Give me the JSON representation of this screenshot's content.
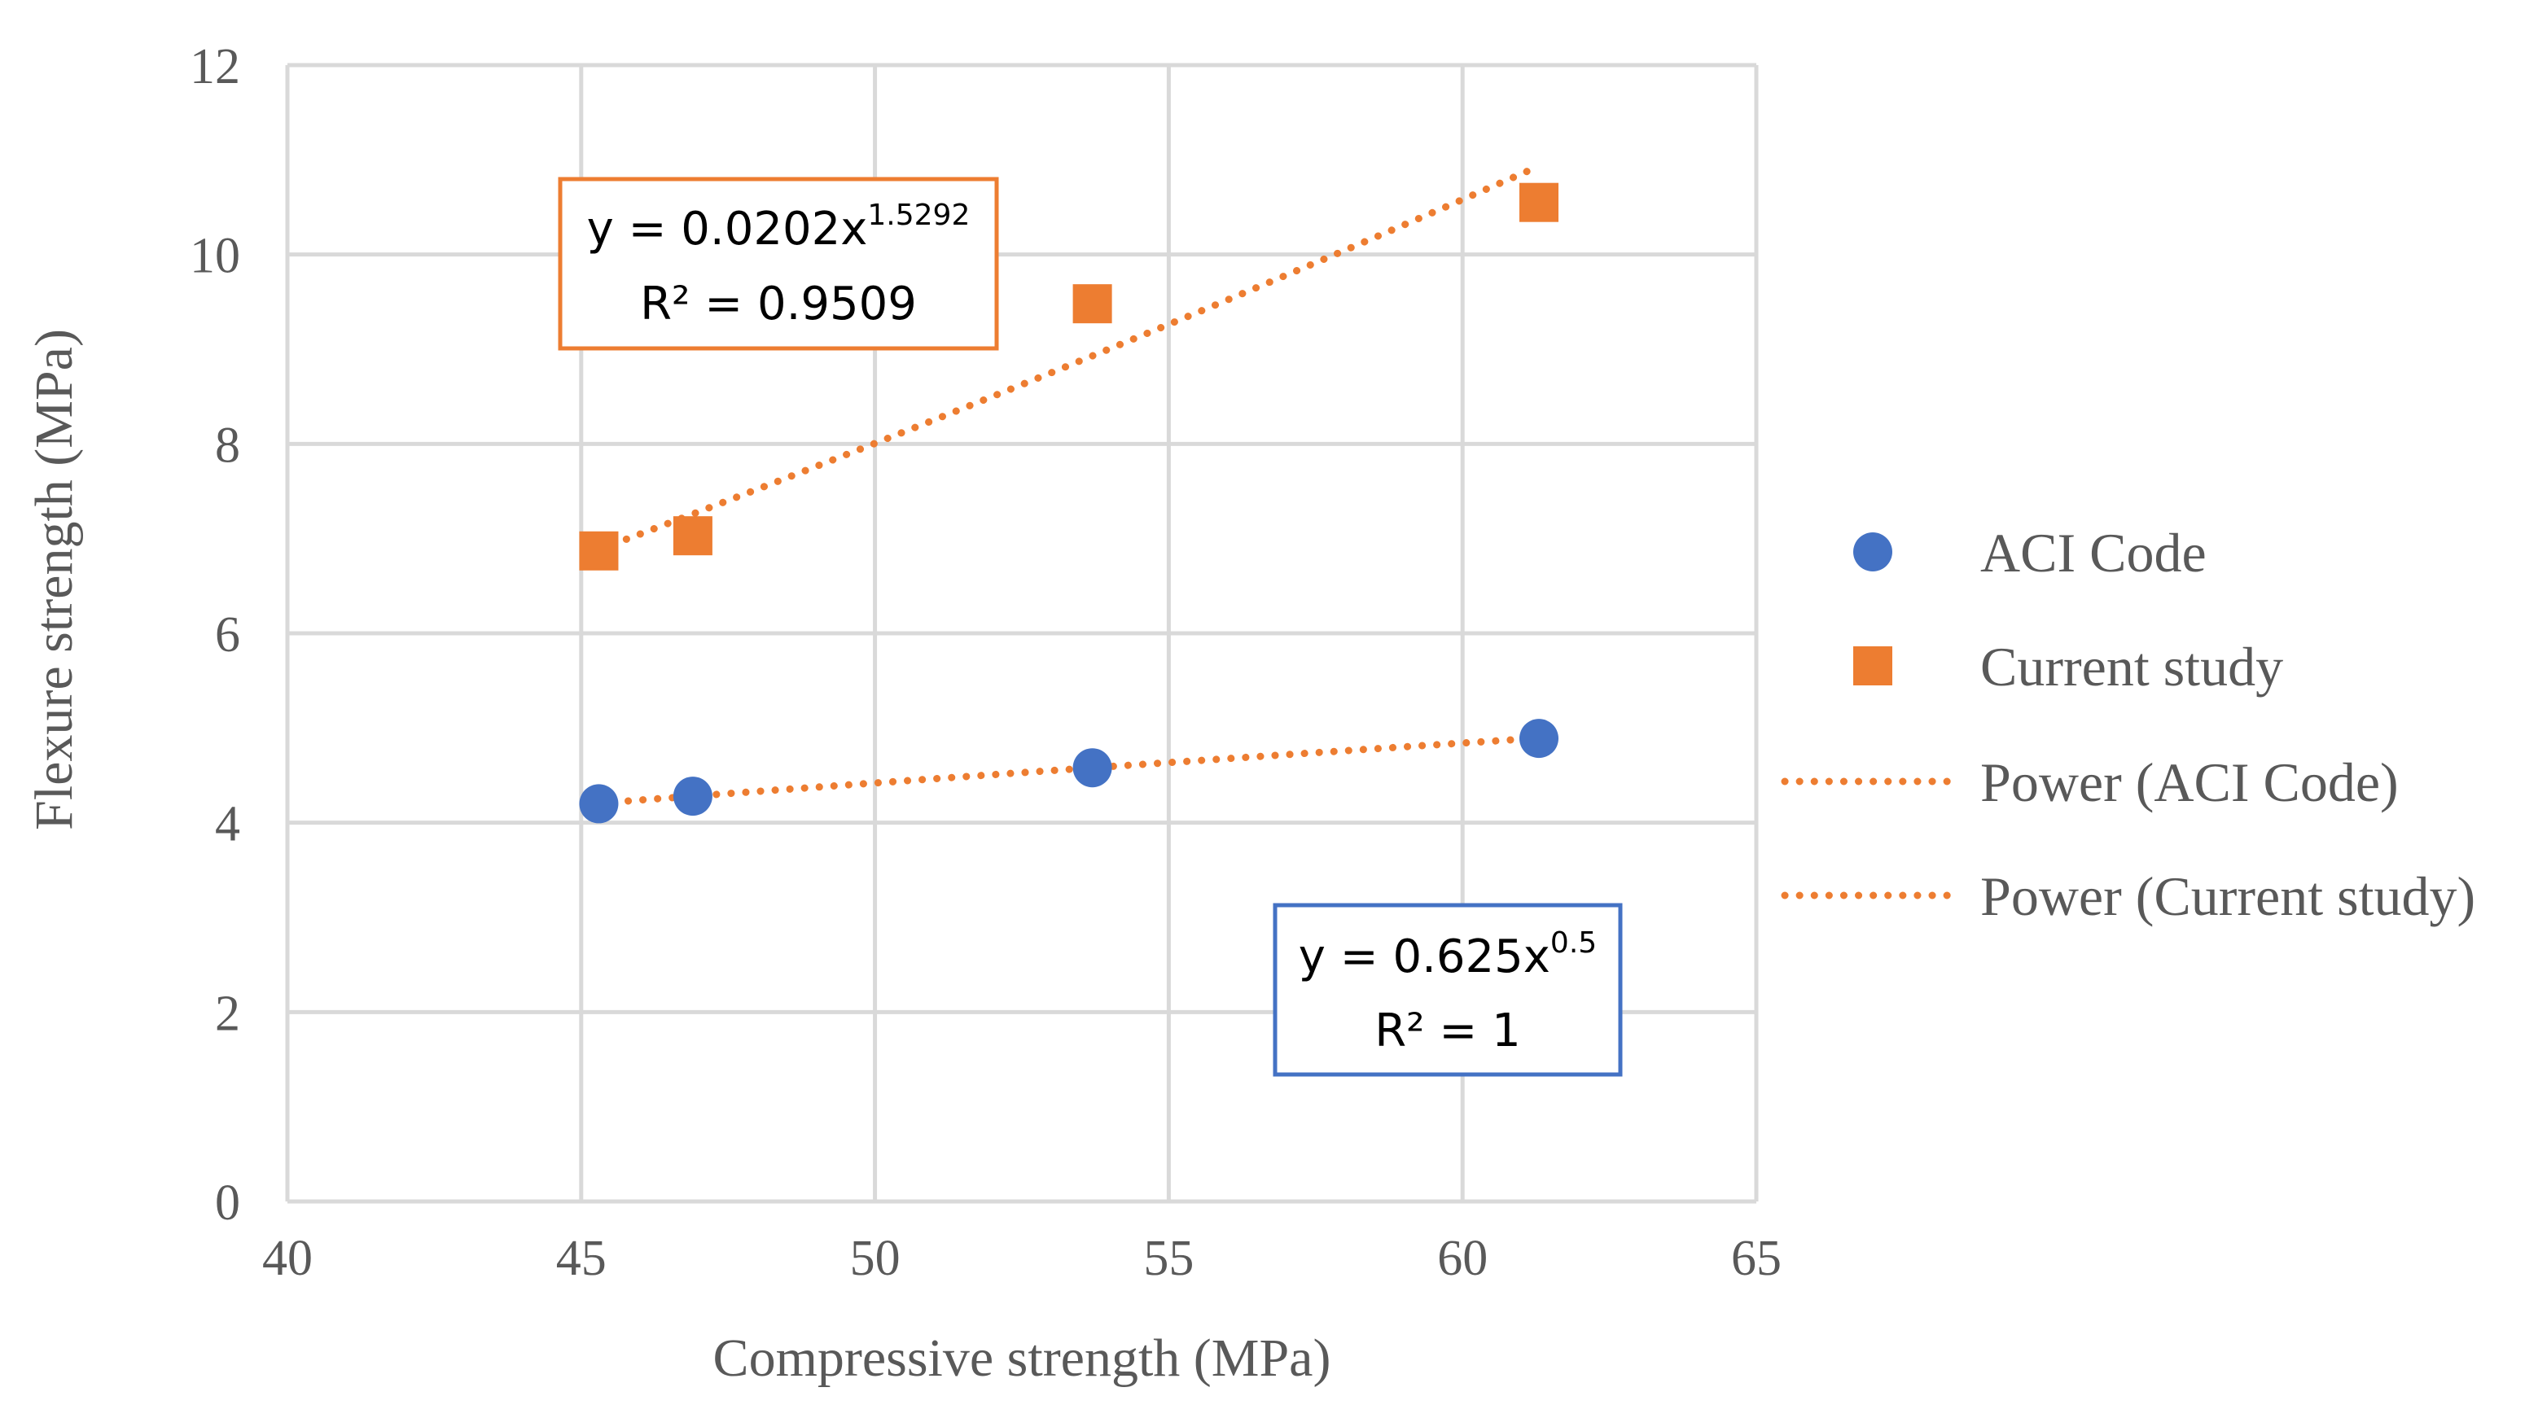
{
  "chart_data": {
    "type": "scatter",
    "xlabel": "Compressive strength (MPa)",
    "ylabel": "Flexure strength (MPa)",
    "xlim": [
      40,
      65
    ],
    "ylim": [
      0,
      12
    ],
    "x_ticks": [
      40,
      45,
      50,
      55,
      60,
      65
    ],
    "y_ticks": [
      0,
      2,
      4,
      6,
      8,
      10,
      12
    ],
    "grid": true,
    "legend_position": "right",
    "series": [
      {
        "name": "ACI Code",
        "marker": "circle",
        "color": "#4472C4",
        "points": [
          {
            "x": 45.3,
            "y": 4.2
          },
          {
            "x": 46.9,
            "y": 4.28
          },
          {
            "x": 53.7,
            "y": 4.58
          },
          {
            "x": 61.3,
            "y": 4.89
          }
        ]
      },
      {
        "name": "Current study",
        "marker": "square",
        "color": "#ED7D31",
        "points": [
          {
            "x": 45.3,
            "y": 6.87
          },
          {
            "x": 46.9,
            "y": 7.03
          },
          {
            "x": 53.7,
            "y": 9.48
          },
          {
            "x": 61.3,
            "y": 10.55
          }
        ]
      }
    ],
    "trendlines": [
      {
        "name": "Power (ACI Code)",
        "type": "power",
        "series": "ACI Code",
        "coefficient": 0.625,
        "exponent": 0.5,
        "color": "#ED7D31",
        "equation": {
          "base": "y = 0.625x",
          "exponent": "0.5",
          "r2": "R² = 1"
        },
        "box_color": "#4472C4"
      },
      {
        "name": "Power (Current study)",
        "type": "power",
        "series": "Current study",
        "coefficient": 0.0202,
        "exponent": 1.5292,
        "color": "#ED7D31",
        "equation": {
          "base": "y = 0.0202x",
          "exponent": "1.5292",
          "r2": "R² = 0.9509"
        },
        "box_color": "#ED7D31"
      }
    ],
    "colors": {
      "grid": "#d9d9d9",
      "axis_text": "#595959",
      "trend": "#ED7D31"
    }
  }
}
